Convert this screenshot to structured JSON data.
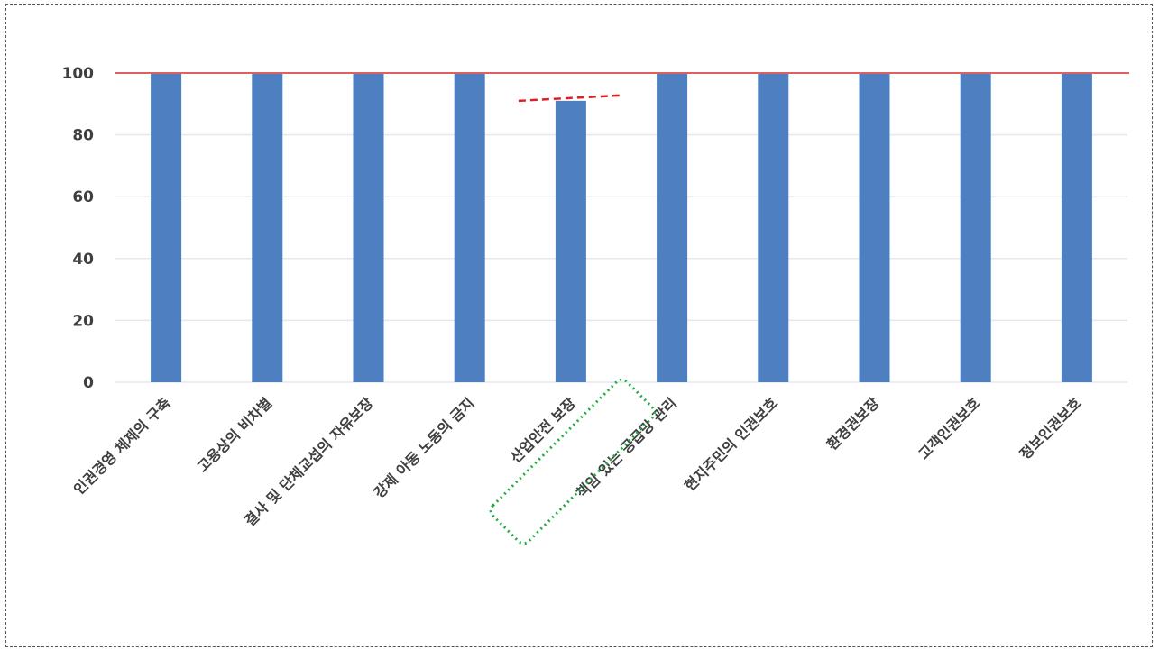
{
  "chart_data": {
    "type": "bar",
    "categories": [
      "인권경영 체제의 구축",
      "고용상의 비차별",
      "결사 및 단체교섭의 자유보장",
      "강제 아동 노동의 금지",
      "산업안전 보장",
      "책임 있는 공급망 관리",
      "현지주민의 인권보호",
      "환경권보장",
      "고객인권보호",
      "정보인권보호"
    ],
    "values": [
      100,
      100,
      100,
      100,
      91,
      100,
      100,
      100,
      100,
      100
    ],
    "yticks": [
      "0",
      "20",
      "40",
      "60",
      "80",
      "100"
    ],
    "ylim": [
      0,
      100
    ],
    "grid": true,
    "reference_line": 100,
    "highlighted_category": "산업안전 보장",
    "highlight_marker_value": 91,
    "title": "",
    "xlabel": "",
    "ylabel": ""
  },
  "colors": {
    "bar": "#4d7fc1",
    "reference_line": "#e06060",
    "highlight_dash": "#e02020",
    "highlight_box": "#22aa44",
    "grid": "#e4e8ee",
    "text": "#404040"
  }
}
